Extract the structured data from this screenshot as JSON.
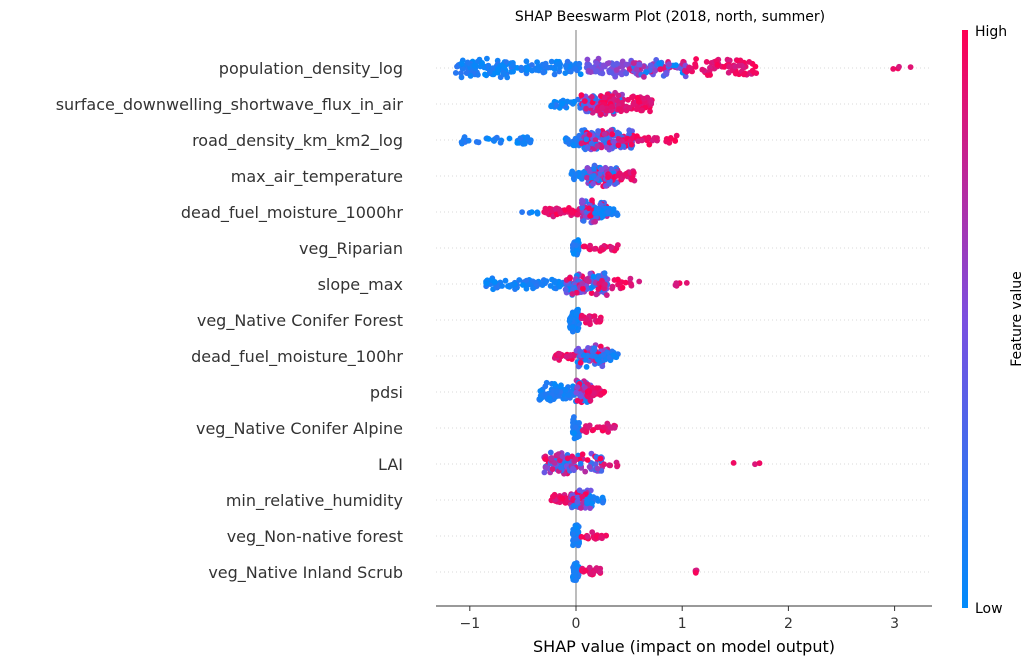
{
  "chart_data": {
    "type": "scatter",
    "subtype": "beeswarm",
    "title": "SHAP Beeswarm Plot (2018, north, summer)",
    "xlabel": "SHAP value (impact on model output)",
    "xlim": [
      -1.3,
      3.35
    ],
    "xticks": [
      -1,
      0,
      1,
      2,
      3
    ],
    "xtick_labels": [
      "−1",
      "0",
      "1",
      "2",
      "3"
    ],
    "colorbar": {
      "label": "Feature value",
      "high_label": "High",
      "low_label": "Low",
      "low_color": "#008bfb",
      "mid_color": "#7b4fe0",
      "high_color": "#ff0052"
    },
    "zero_line_color": "#999999",
    "features": [
      {
        "name": "population_density_log",
        "groups": [
          {
            "from": -1.15,
            "to": -0.45,
            "n": 95,
            "color": "low",
            "spread": 11
          },
          {
            "from": -0.45,
            "to": 0.05,
            "n": 55,
            "color": "low",
            "spread": 7
          },
          {
            "from": 0.1,
            "to": 0.6,
            "n": 80,
            "color": "mid",
            "spread": 10
          },
          {
            "from": 0.5,
            "to": 1.05,
            "n": 70,
            "color": "mix",
            "spread": 10
          },
          {
            "from": 1.0,
            "to": 1.7,
            "n": 75,
            "color": "high",
            "spread": 10
          },
          {
            "from": 2.95,
            "to": 3.16,
            "n": 4,
            "color": "high",
            "spread": 3
          }
        ]
      },
      {
        "name": "surface_downwelling_shortwave_flux_in_air",
        "groups": [
          {
            "from": -0.25,
            "to": 0.1,
            "n": 30,
            "color": "low",
            "spread": 5
          },
          {
            "from": 0.05,
            "to": 0.45,
            "n": 140,
            "color": "mix",
            "spread": 12
          },
          {
            "from": 0.2,
            "to": 0.72,
            "n": 80,
            "color": "high",
            "spread": 10
          }
        ]
      },
      {
        "name": "road_density_km_km2_log",
        "groups": [
          {
            "from": -1.1,
            "to": -0.4,
            "n": 35,
            "color": "low",
            "spread": 5
          },
          {
            "from": -0.1,
            "to": 0.2,
            "n": 40,
            "color": "low",
            "spread": 7
          },
          {
            "from": 0.05,
            "to": 0.55,
            "n": 150,
            "color": "mix",
            "spread": 12
          },
          {
            "from": 0.4,
            "to": 0.95,
            "n": 30,
            "color": "high",
            "spread": 5
          }
        ]
      },
      {
        "name": "max_air_temperature",
        "groups": [
          {
            "from": -0.05,
            "to": 0.2,
            "n": 30,
            "color": "low",
            "spread": 7
          },
          {
            "from": 0.1,
            "to": 0.4,
            "n": 120,
            "color": "mix",
            "spread": 12
          },
          {
            "from": 0.3,
            "to": 0.55,
            "n": 25,
            "color": "high",
            "spread": 6
          }
        ]
      },
      {
        "name": "dead_fuel_moisture_1000hr",
        "groups": [
          {
            "from": -0.6,
            "to": -0.35,
            "n": 5,
            "color": "low",
            "spread": 3
          },
          {
            "from": -0.3,
            "to": 0.05,
            "n": 50,
            "color": "high",
            "spread": 5
          },
          {
            "from": 0.05,
            "to": 0.3,
            "n": 110,
            "color": "mix",
            "spread": 12
          },
          {
            "from": 0.15,
            "to": 0.4,
            "n": 25,
            "color": "low",
            "spread": 6
          }
        ]
      },
      {
        "name": "veg_Riparian",
        "groups": [
          {
            "from": -0.03,
            "to": 0.03,
            "n": 60,
            "color": "low",
            "spread": 9
          },
          {
            "from": 0.07,
            "to": 0.4,
            "n": 22,
            "color": "high",
            "spread": 4
          }
        ]
      },
      {
        "name": "slope_max",
        "groups": [
          {
            "from": -0.85,
            "to": -0.05,
            "n": 90,
            "color": "low",
            "spread": 6
          },
          {
            "from": -0.1,
            "to": 0.3,
            "n": 120,
            "color": "mix",
            "spread": 12
          },
          {
            "from": 0.2,
            "to": 0.6,
            "n": 25,
            "color": "high",
            "spread": 6
          },
          {
            "from": 0.9,
            "to": 1.05,
            "n": 5,
            "color": "high",
            "spread": 3
          }
        ]
      },
      {
        "name": "veg_Native Conifer Forest",
        "groups": [
          {
            "from": -0.06,
            "to": 0.03,
            "n": 70,
            "color": "low",
            "spread": 12
          },
          {
            "from": 0.05,
            "to": 0.25,
            "n": 30,
            "color": "high",
            "spread": 6
          }
        ]
      },
      {
        "name": "dead_fuel_moisture_100hr",
        "groups": [
          {
            "from": -0.2,
            "to": 0.05,
            "n": 30,
            "color": "high",
            "spread": 5
          },
          {
            "from": 0.0,
            "to": 0.3,
            "n": 100,
            "color": "mix",
            "spread": 12
          },
          {
            "from": 0.15,
            "to": 0.4,
            "n": 25,
            "color": "low",
            "spread": 6
          }
        ]
      },
      {
        "name": "pdsi",
        "groups": [
          {
            "from": -0.35,
            "to": 0.0,
            "n": 80,
            "color": "low",
            "spread": 10
          },
          {
            "from": 0.0,
            "to": 0.15,
            "n": 70,
            "color": "mix",
            "spread": 12
          },
          {
            "from": 0.1,
            "to": 0.28,
            "n": 30,
            "color": "high",
            "spread": 6
          }
        ]
      },
      {
        "name": "veg_Native Conifer Alpine",
        "groups": [
          {
            "from": -0.03,
            "to": 0.03,
            "n": 60,
            "color": "low",
            "spread": 12
          },
          {
            "from": 0.05,
            "to": 0.4,
            "n": 25,
            "color": "high",
            "spread": 5
          }
        ]
      },
      {
        "name": "LAI",
        "groups": [
          {
            "from": -0.3,
            "to": 0.25,
            "n": 120,
            "color": "mix",
            "spread": 12
          },
          {
            "from": 0.25,
            "to": 0.42,
            "n": 6,
            "color": "high",
            "spread": 3
          },
          {
            "from": 1.4,
            "to": 1.8,
            "n": 3,
            "color": "high",
            "spread": 2
          }
        ]
      },
      {
        "name": "min_relative_humidity",
        "groups": [
          {
            "from": -0.25,
            "to": 0.0,
            "n": 40,
            "color": "high",
            "spread": 6
          },
          {
            "from": -0.05,
            "to": 0.15,
            "n": 80,
            "color": "mix",
            "spread": 12
          },
          {
            "from": 0.1,
            "to": 0.28,
            "n": 15,
            "color": "low",
            "spread": 4
          }
        ]
      },
      {
        "name": "veg_Non-native forest",
        "groups": [
          {
            "from": -0.03,
            "to": 0.03,
            "n": 55,
            "color": "low",
            "spread": 12
          },
          {
            "from": 0.05,
            "to": 0.3,
            "n": 22,
            "color": "high",
            "spread": 5
          }
        ]
      },
      {
        "name": "veg_Native Inland Scrub",
        "groups": [
          {
            "from": -0.03,
            "to": 0.03,
            "n": 60,
            "color": "low",
            "spread": 12
          },
          {
            "from": 0.05,
            "to": 0.25,
            "n": 25,
            "color": "high",
            "spread": 5
          },
          {
            "from": 1.1,
            "to": 1.15,
            "n": 3,
            "color": "high",
            "spread": 2
          }
        ]
      }
    ]
  }
}
